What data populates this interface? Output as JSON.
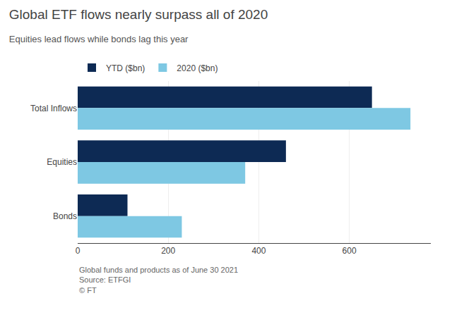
{
  "chart_data": {
    "type": "bar",
    "orientation": "horizontal",
    "title": "Global ETF flows nearly surpass all of 2020",
    "subtitle": "Equities lead flows while bonds lag this year",
    "categories": [
      "Total Inflows",
      "Equities",
      "Bonds"
    ],
    "series": [
      {
        "name": "YTD ($bn)",
        "color": "#0d2a54",
        "values": [
          650,
          460,
          110
        ]
      },
      {
        "name": "2020 ($bn)",
        "color": "#7ec8e3",
        "values": [
          735,
          370,
          230
        ]
      }
    ],
    "xlim": [
      0,
      780
    ],
    "xticks": [
      0,
      200,
      400,
      600
    ],
    "grid": true,
    "legend": "upper left",
    "annotations": [
      "Global funds and products as of June 30 2021",
      "Source: ETFGI",
      "© FT"
    ]
  }
}
